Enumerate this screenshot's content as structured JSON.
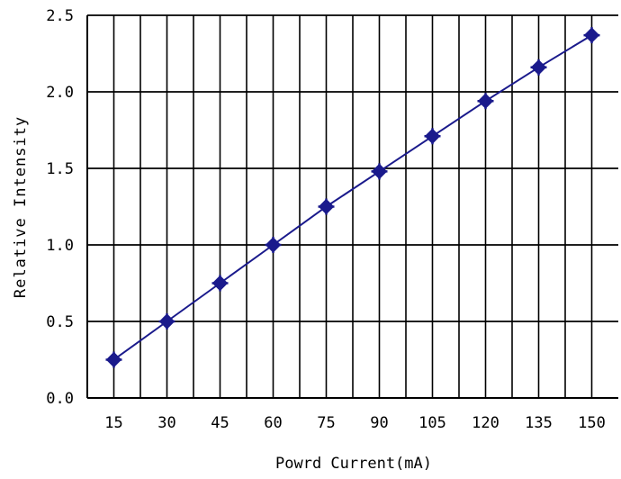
{
  "chart_data": {
    "type": "line",
    "xlabel": "Powrd Current(mA)",
    "ylabel": "Relative Intensity",
    "categories": [
      "15",
      "30",
      "45",
      "60",
      "75",
      "90",
      "105",
      "120",
      "135",
      "150"
    ],
    "values": [
      0.25,
      0.5,
      0.75,
      1.0,
      1.25,
      1.48,
      1.71,
      1.94,
      2.16,
      2.37
    ],
    "yticks": [
      "0.0",
      "0.5",
      "1.0",
      "1.5",
      "2.0",
      "2.5"
    ],
    "ylim": [
      0,
      2.5
    ],
    "grid": true,
    "legend": "none",
    "line_color": "#1a1a8c",
    "marker": "diamond-cross"
  }
}
